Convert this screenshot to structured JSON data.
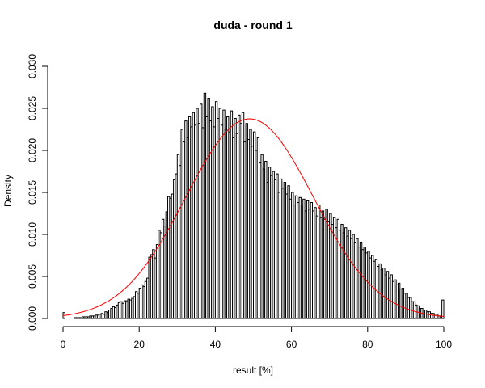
{
  "chart_data": {
    "type": "bar",
    "title": "duda - round 1",
    "xlabel": "result [%]",
    "ylabel": "Density",
    "xlim": [
      0,
      100
    ],
    "ylim": [
      0,
      0.03
    ],
    "x_ticks": [
      0,
      20,
      40,
      60,
      80,
      100
    ],
    "x_tick_labels": [
      "0",
      "20",
      "40",
      "60",
      "80",
      "100"
    ],
    "y_ticks": [
      0,
      0.005,
      0.01,
      0.015,
      0.02,
      0.025,
      0.03
    ],
    "y_tick_labels": [
      "0.000",
      "0.005",
      "0.010",
      "0.015",
      "0.020",
      "0.025",
      "0.030"
    ],
    "bin_width": 0.5,
    "bin_start": 0,
    "bar_fill": "#ffffff",
    "bar_stroke": "#000000",
    "densities": [
      0.0007,
      0.0,
      0.0,
      0.0,
      0.0,
      0.0,
      0.0001,
      0.0001,
      0.0001,
      0.0001,
      0.0002,
      0.0002,
      0.0002,
      0.0002,
      0.0003,
      0.0003,
      0.0003,
      0.0004,
      0.0004,
      0.0005,
      0.0006,
      0.0005,
      0.0008,
      0.0007,
      0.001,
      0.0012,
      0.0014,
      0.0013,
      0.0016,
      0.0019,
      0.002,
      0.0018,
      0.0021,
      0.0021,
      0.0023,
      0.0022,
      0.0024,
      0.0026,
      0.0032,
      0.003,
      0.0036,
      0.004,
      0.0038,
      0.0044,
      0.0048,
      0.0073,
      0.0076,
      0.0082,
      0.0072,
      0.0088,
      0.0105,
      0.0102,
      0.0118,
      0.011,
      0.0127,
      0.0145,
      0.0143,
      0.0148,
      0.0165,
      0.0172,
      0.0195,
      0.0182,
      0.0225,
      0.021,
      0.0235,
      0.0215,
      0.024,
      0.0228,
      0.0245,
      0.023,
      0.025,
      0.0232,
      0.0255,
      0.0227,
      0.0268,
      0.024,
      0.0262,
      0.0235,
      0.0252,
      0.0228,
      0.0258,
      0.0238,
      0.025,
      0.023,
      0.0248,
      0.0225,
      0.024,
      0.0222,
      0.0247,
      0.0215,
      0.0238,
      0.022,
      0.0242,
      0.0232,
      0.0245,
      0.021,
      0.0232,
      0.0213,
      0.0225,
      0.0205,
      0.0222,
      0.02,
      0.0215,
      0.0185,
      0.0195,
      0.0178,
      0.0187,
      0.0162,
      0.018,
      0.017,
      0.0175,
      0.0165,
      0.0172,
      0.015,
      0.0166,
      0.0155,
      0.0162,
      0.0148,
      0.0158,
      0.0142,
      0.015,
      0.0135,
      0.0146,
      0.0138,
      0.0144,
      0.0135,
      0.0142,
      0.0128,
      0.014,
      0.013,
      0.0138,
      0.0128,
      0.0132,
      0.0122,
      0.0135,
      0.012,
      0.0128,
      0.0118,
      0.013,
      0.0115,
      0.0125,
      0.0112,
      0.012,
      0.0108,
      0.0118,
      0.0105,
      0.0112,
      0.0102,
      0.0108,
      0.0098,
      0.0105,
      0.0095,
      0.01,
      0.009,
      0.0095,
      0.0085,
      0.009,
      0.0082,
      0.0085,
      0.0078,
      0.008,
      0.0072,
      0.0075,
      0.0068,
      0.007,
      0.0062,
      0.0065,
      0.0058,
      0.006,
      0.0052,
      0.0056,
      0.0048,
      0.0052,
      0.0044,
      0.0046,
      0.004,
      0.0042,
      0.0035,
      0.0036,
      0.003,
      0.003,
      0.0025,
      0.0025,
      0.002,
      0.002,
      0.0016,
      0.0015,
      0.0012,
      0.0012,
      0.001,
      0.001,
      0.0008,
      0.0008,
      0.0006,
      0.0006,
      0.0005,
      0.0005,
      0.0003,
      0.0003,
      0.0022
    ],
    "normal_curve": {
      "mean": 49,
      "sd": 16.8,
      "color": "#ff0000"
    }
  }
}
